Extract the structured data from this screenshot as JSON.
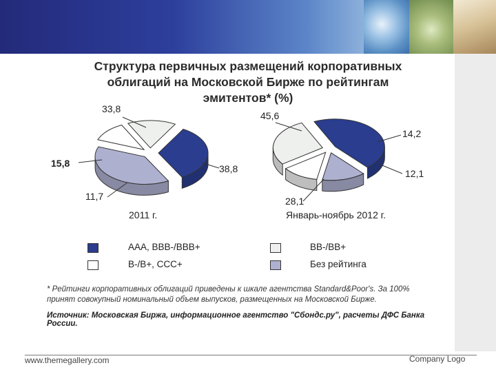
{
  "slide": {
    "footer_left": "www.themegallery.com",
    "footer_right": "Company Logo"
  },
  "chart_data": {
    "type": "pie",
    "title": "Структура первичных размещений корпоративных облигаций на Московской Бирже по рейтингам эмитентов* (%)",
    "title_lines": [
      "Структура первичных размещений корпоративных",
      "облигаций на Московской Бирже по рейтингам",
      "эмитентов* (%)"
    ],
    "categories": [
      "ААА, ВВВ-/ВВВ+",
      "ВВ-/ВВ+",
      "В-/В+, ССС+",
      "Без рейтинга"
    ],
    "colors": [
      "#2a3d8f",
      "#eef0ee",
      "#ffffff",
      "#aeb0d0"
    ],
    "series": [
      {
        "name": "2011 г.",
        "values": [
          33.8,
          15.8,
          11.7,
          38.8
        ],
        "labels": [
          "33,8",
          "15,8",
          "11,7",
          "38,8"
        ]
      },
      {
        "name": "Январь-ноябрь 2012 г.",
        "values": [
          45.6,
          28.1,
          12.1,
          14.2
        ],
        "labels": [
          "45,6",
          "28,1",
          "12,1",
          "14,2"
        ]
      }
    ],
    "legend": [
      "ААА, ВВВ-/ВВВ+",
      "ВВ-/ВВ+",
      "В-/В+, ССС+",
      "Без рейтинга"
    ],
    "footnote": "* Рейтинги корпоративных облигаций приведены к шкале агентства Standard&Poor's. За 100% принят совокупный номинальный объем выпусков, размещенных на Московской Бирже.",
    "source": "Источник: Московская Биржа, информационное агентство \"Сбондс.ру\", расчеты ДФС Банка России."
  }
}
